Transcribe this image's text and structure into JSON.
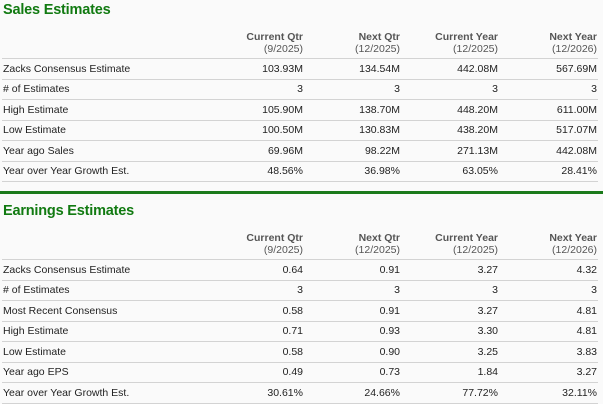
{
  "columns": [
    {
      "label": "Current Qtr",
      "period": "(9/2025)"
    },
    {
      "label": "Next Qtr",
      "period": "(12/2025)"
    },
    {
      "label": "Current Year",
      "period": "(12/2025)"
    },
    {
      "label": "Next Year",
      "period": "(12/2026)"
    }
  ],
  "sales": {
    "title": "Sales Estimates",
    "rows": [
      {
        "label": "Zacks Consensus Estimate",
        "values": [
          "103.93M",
          "134.54M",
          "442.08M",
          "567.69M"
        ]
      },
      {
        "label": "# of Estimates",
        "values": [
          "3",
          "3",
          "3",
          "3"
        ]
      },
      {
        "label": "High Estimate",
        "values": [
          "105.90M",
          "138.70M",
          "448.20M",
          "611.00M"
        ]
      },
      {
        "label": "Low Estimate",
        "values": [
          "100.50M",
          "130.83M",
          "438.20M",
          "517.07M"
        ]
      },
      {
        "label": "Year ago Sales",
        "values": [
          "69.96M",
          "98.22M",
          "271.13M",
          "442.08M"
        ]
      },
      {
        "label": "Year over Year Growth Est.",
        "values": [
          "48.56%",
          "36.98%",
          "63.05%",
          "28.41%"
        ]
      }
    ]
  },
  "earnings": {
    "title": "Earnings Estimates",
    "rows": [
      {
        "label": "Zacks Consensus Estimate",
        "values": [
          "0.64",
          "0.91",
          "3.27",
          "4.32"
        ]
      },
      {
        "label": "# of Estimates",
        "values": [
          "3",
          "3",
          "3",
          "3"
        ]
      },
      {
        "label": "Most Recent Consensus",
        "values": [
          "0.58",
          "0.91",
          "3.27",
          "4.81"
        ]
      },
      {
        "label": "High Estimate",
        "values": [
          "0.71",
          "0.93",
          "3.30",
          "4.81"
        ]
      },
      {
        "label": "Low Estimate",
        "values": [
          "0.58",
          "0.90",
          "3.25",
          "3.83"
        ]
      },
      {
        "label": "Year ago EPS",
        "values": [
          "0.49",
          "0.73",
          "1.84",
          "3.27"
        ]
      },
      {
        "label": "Year over Year Growth Est.",
        "values": [
          "30.61%",
          "24.66%",
          "77.72%",
          "32.11%"
        ]
      }
    ]
  },
  "colors": {
    "accent": "#117a11",
    "divider": "#1b7a1b"
  }
}
